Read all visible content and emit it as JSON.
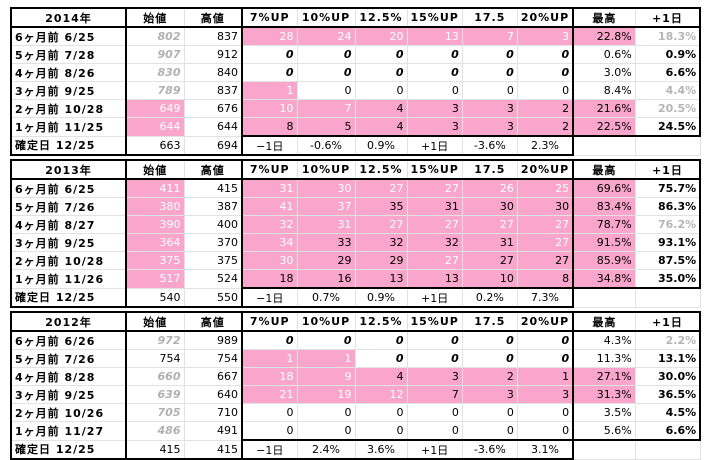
{
  "headers": [
    "始値",
    "高値",
    "7%UP",
    "10%UP",
    "12.5%",
    "15%UP",
    "17.5",
    "20%UP",
    "最高",
    "+1日"
  ],
  "blocks": [
    {
      "year": "2014年",
      "rows": [
        {
          "label": "6ヶ月前  6/25",
          "cells": [
            "802",
            "837",
            "28",
            "24",
            "20",
            "13",
            "7",
            "3",
            "22.8%",
            "18.3%"
          ],
          "styles": [
            "gi",
            "",
            "w pink",
            "w pink",
            "w pink",
            "w pink",
            "w pink",
            "w pink",
            "pink",
            "g b"
          ]
        },
        {
          "label": "5ヶ月前  7/28",
          "cells": [
            "907",
            "912",
            "0",
            "0",
            "0",
            "0",
            "0",
            "0",
            "0.6%",
            "0.9%"
          ],
          "styles": [
            "gi",
            "",
            "bi",
            "bi",
            "bi",
            "bi",
            "bi",
            "bi",
            "",
            "b"
          ]
        },
        {
          "label": "4ヶ月前  8/26",
          "cells": [
            "830",
            "840",
            "0",
            "0",
            "0",
            "0",
            "0",
            "0",
            "3.0%",
            "6.6%"
          ],
          "styles": [
            "gi",
            "",
            "bi",
            "bi",
            "bi",
            "bi",
            "bi",
            "bi",
            "",
            "b"
          ]
        },
        {
          "label": "3ヶ月前  9/25",
          "cells": [
            "789",
            "837",
            "1",
            "0",
            "0",
            "0",
            "0",
            "0",
            "8.4%",
            "4.4%"
          ],
          "styles": [
            "gi",
            "",
            "w pink",
            "",
            "",
            "",
            "",
            "",
            "",
            "g b"
          ]
        },
        {
          "label": "2ヶ月前  10/28",
          "cells": [
            "649",
            "676",
            "10",
            "7",
            "4",
            "3",
            "3",
            "2",
            "21.6%",
            "20.5%"
          ],
          "styles": [
            "w pink",
            "",
            "w pink",
            "w pink",
            "pink",
            "pink",
            "pink",
            "pink",
            "pink",
            "g b"
          ]
        },
        {
          "label": "1ヶ月前  11/25",
          "cells": [
            "644",
            "644",
            "8",
            "5",
            "4",
            "3",
            "3",
            "2",
            "22.5%",
            "24.5%"
          ],
          "styles": [
            "w pink",
            "",
            "pink",
            "pink",
            "pink",
            "pink",
            "pink",
            "pink",
            "pink",
            "b"
          ]
        }
      ],
      "confirm": {
        "label": "確定日  12/25",
        "cells": [
          "663",
          "694",
          "−1日",
          "-0.6%",
          "0.9%",
          "+1日",
          "-3.6%",
          "2.3%",
          "",
          ""
        ]
      }
    },
    {
      "year": "2013年",
      "rows": [
        {
          "label": "6ヶ月前  6/25",
          "cells": [
            "411",
            "415",
            "31",
            "30",
            "27",
            "27",
            "26",
            "25",
            "69.6%",
            "75.7%"
          ],
          "styles": [
            "w pink",
            "",
            "w pink",
            "w pink",
            "w pink",
            "w pink",
            "w pink",
            "w pink",
            "pink",
            "b"
          ]
        },
        {
          "label": "5ヶ月前  7/26",
          "cells": [
            "380",
            "387",
            "41",
            "37",
            "35",
            "31",
            "30",
            "30",
            "83.4%",
            "86.3%"
          ],
          "styles": [
            "w pink",
            "",
            "w pink",
            "w pink",
            "pink",
            "pink",
            "pink",
            "pink",
            "pink",
            "b"
          ]
        },
        {
          "label": "4ヶ月前  8/27",
          "cells": [
            "390",
            "400",
            "32",
            "31",
            "27",
            "27",
            "27",
            "27",
            "78.7%",
            "76.2%"
          ],
          "styles": [
            "w pink",
            "",
            "w pink",
            "w pink",
            "w pink",
            "w pink",
            "w pink",
            "w pink",
            "pink",
            "g b"
          ]
        },
        {
          "label": "3ヶ月前  9/25",
          "cells": [
            "364",
            "370",
            "34",
            "33",
            "32",
            "32",
            "31",
            "27",
            "91.5%",
            "93.1%"
          ],
          "styles": [
            "w pink",
            "",
            "w pink",
            "pink",
            "pink",
            "pink",
            "pink",
            "w pink",
            "pink",
            "b"
          ]
        },
        {
          "label": "2ヶ月前  10/28",
          "cells": [
            "375",
            "375",
            "30",
            "29",
            "29",
            "27",
            "27",
            "27",
            "85.9%",
            "87.5%"
          ],
          "styles": [
            "w pink",
            "",
            "w pink",
            "pink",
            "pink",
            "w pink",
            "pink",
            "pink",
            "pink",
            "b"
          ]
        },
        {
          "label": "1ヶ月前  11/26",
          "cells": [
            "517",
            "524",
            "18",
            "16",
            "13",
            "13",
            "10",
            "8",
            "34.8%",
            "35.0%"
          ],
          "styles": [
            "w pink",
            "",
            "pink",
            "pink",
            "pink",
            "pink",
            "pink",
            "pink",
            "pink",
            "b"
          ]
        }
      ],
      "confirm": {
        "label": "確定日  12/25",
        "cells": [
          "540",
          "550",
          "−1日",
          "0.7%",
          "0.9%",
          "+1日",
          "0.2%",
          "7.3%",
          "",
          ""
        ]
      }
    },
    {
      "year": "2012年",
      "rows": [
        {
          "label": "6ヶ月前  6/26",
          "cells": [
            "972",
            "989",
            "0",
            "0",
            "0",
            "0",
            "0",
            "0",
            "4.3%",
            "2.2%"
          ],
          "styles": [
            "gi",
            "",
            "bi",
            "bi",
            "bi",
            "bi",
            "bi",
            "bi",
            "",
            "g b"
          ]
        },
        {
          "label": "5ヶ月前  7/26",
          "cells": [
            "754",
            "754",
            "1",
            "1",
            "0",
            "0",
            "0",
            "0",
            "11.3%",
            "13.1%"
          ],
          "styles": [
            "",
            "",
            "w pink",
            "w pink",
            "bi",
            "bi",
            "bi",
            "bi",
            "",
            "b"
          ]
        },
        {
          "label": "4ヶ月前  8/28",
          "cells": [
            "660",
            "667",
            "18",
            "9",
            "4",
            "3",
            "2",
            "1",
            "27.1%",
            "30.0%"
          ],
          "styles": [
            "gi",
            "",
            "w pink",
            "w pink",
            "pink",
            "pink",
            "pink",
            "pink",
            "pink",
            "b"
          ]
        },
        {
          "label": "3ヶ月前  9/25",
          "cells": [
            "639",
            "640",
            "21",
            "19",
            "12",
            "7",
            "3",
            "3",
            "31.3%",
            "36.5%"
          ],
          "styles": [
            "gi",
            "",
            "w pink",
            "w pink",
            "w pink",
            "pink",
            "pink",
            "pink",
            "pink",
            "b"
          ]
        },
        {
          "label": "2ヶ月前  10/26",
          "cells": [
            "705",
            "710",
            "0",
            "0",
            "0",
            "0",
            "0",
            "0",
            "3.5%",
            "4.5%"
          ],
          "styles": [
            "gi",
            "",
            "",
            "",
            "",
            "",
            "",
            "",
            "",
            "b"
          ]
        },
        {
          "label": "1ヶ月前  11/27",
          "cells": [
            "486",
            "491",
            "0",
            "0",
            "0",
            "0",
            "0",
            "0",
            "5.6%",
            "6.6%"
          ],
          "styles": [
            "gi",
            "",
            "",
            "",
            "",
            "",
            "",
            "",
            "",
            "b"
          ]
        }
      ],
      "confirm": {
        "label": "確定日  12/25",
        "cells": [
          "415",
          "415",
          "−1日",
          "2.4%",
          "3.6%",
          "+1日",
          "-3.6%",
          "3.1%",
          "",
          ""
        ]
      }
    }
  ]
}
